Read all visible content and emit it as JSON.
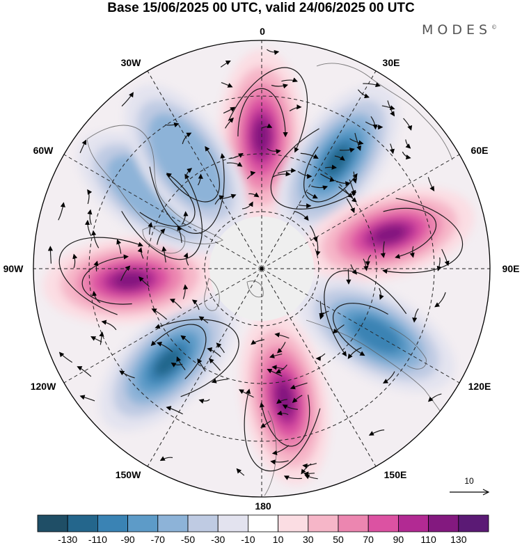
{
  "title": "Base 15/06/2025 00 UTC, valid 24/06/2025 00 UTC",
  "brand": "MODES",
  "brand_mark": "©",
  "longitude_labels": {
    "lon_0": "0",
    "lon_30e": "30E",
    "lon_60e": "60E",
    "lon_90e": "90E",
    "lon_120e": "120E",
    "lon_150e": "150E",
    "lon_180": "180",
    "lon_150w": "150W",
    "lon_120w": "120W",
    "lon_90w": "90W",
    "lon_60w": "60W",
    "lon_30w": "30W"
  },
  "vector_scale": {
    "label": "10"
  },
  "colorbar": {
    "labels": [
      "-130",
      "-110",
      "-90",
      "-70",
      "-50",
      "-30",
      "-10",
      "10",
      "30",
      "50",
      "70",
      "90",
      "110",
      "130"
    ],
    "colors": [
      "#1f4e66",
      "#24668c",
      "#3a83b4",
      "#5d9bc8",
      "#8db3d8",
      "#bfcbe3",
      "#e3e3ef",
      "#ffffff",
      "#fbdde3",
      "#f6b6c8",
      "#ec86b0",
      "#dc52a2",
      "#b22a93",
      "#83197f",
      "#5b1a75"
    ]
  },
  "map": {
    "projection": "north-polar-stereographic",
    "anomaly_centers": [
      {
        "lon": 0,
        "sign": "positive",
        "peak": 120
      },
      {
        "lon": 35,
        "sign": "negative",
        "peak": -130
      },
      {
        "lon": 75,
        "sign": "positive",
        "peak": 125
      },
      {
        "lon": 120,
        "sign": "negative",
        "peak": -100
      },
      {
        "lon": 170,
        "sign": "positive",
        "peak": 125
      },
      {
        "lon": -135,
        "sign": "negative",
        "peak": -125
      },
      {
        "lon": -95,
        "sign": "positive",
        "peak": 120
      },
      {
        "lon": -55,
        "sign": "negative",
        "peak": -70
      },
      {
        "lon": -35,
        "sign": "negative",
        "peak": -60
      }
    ]
  }
}
